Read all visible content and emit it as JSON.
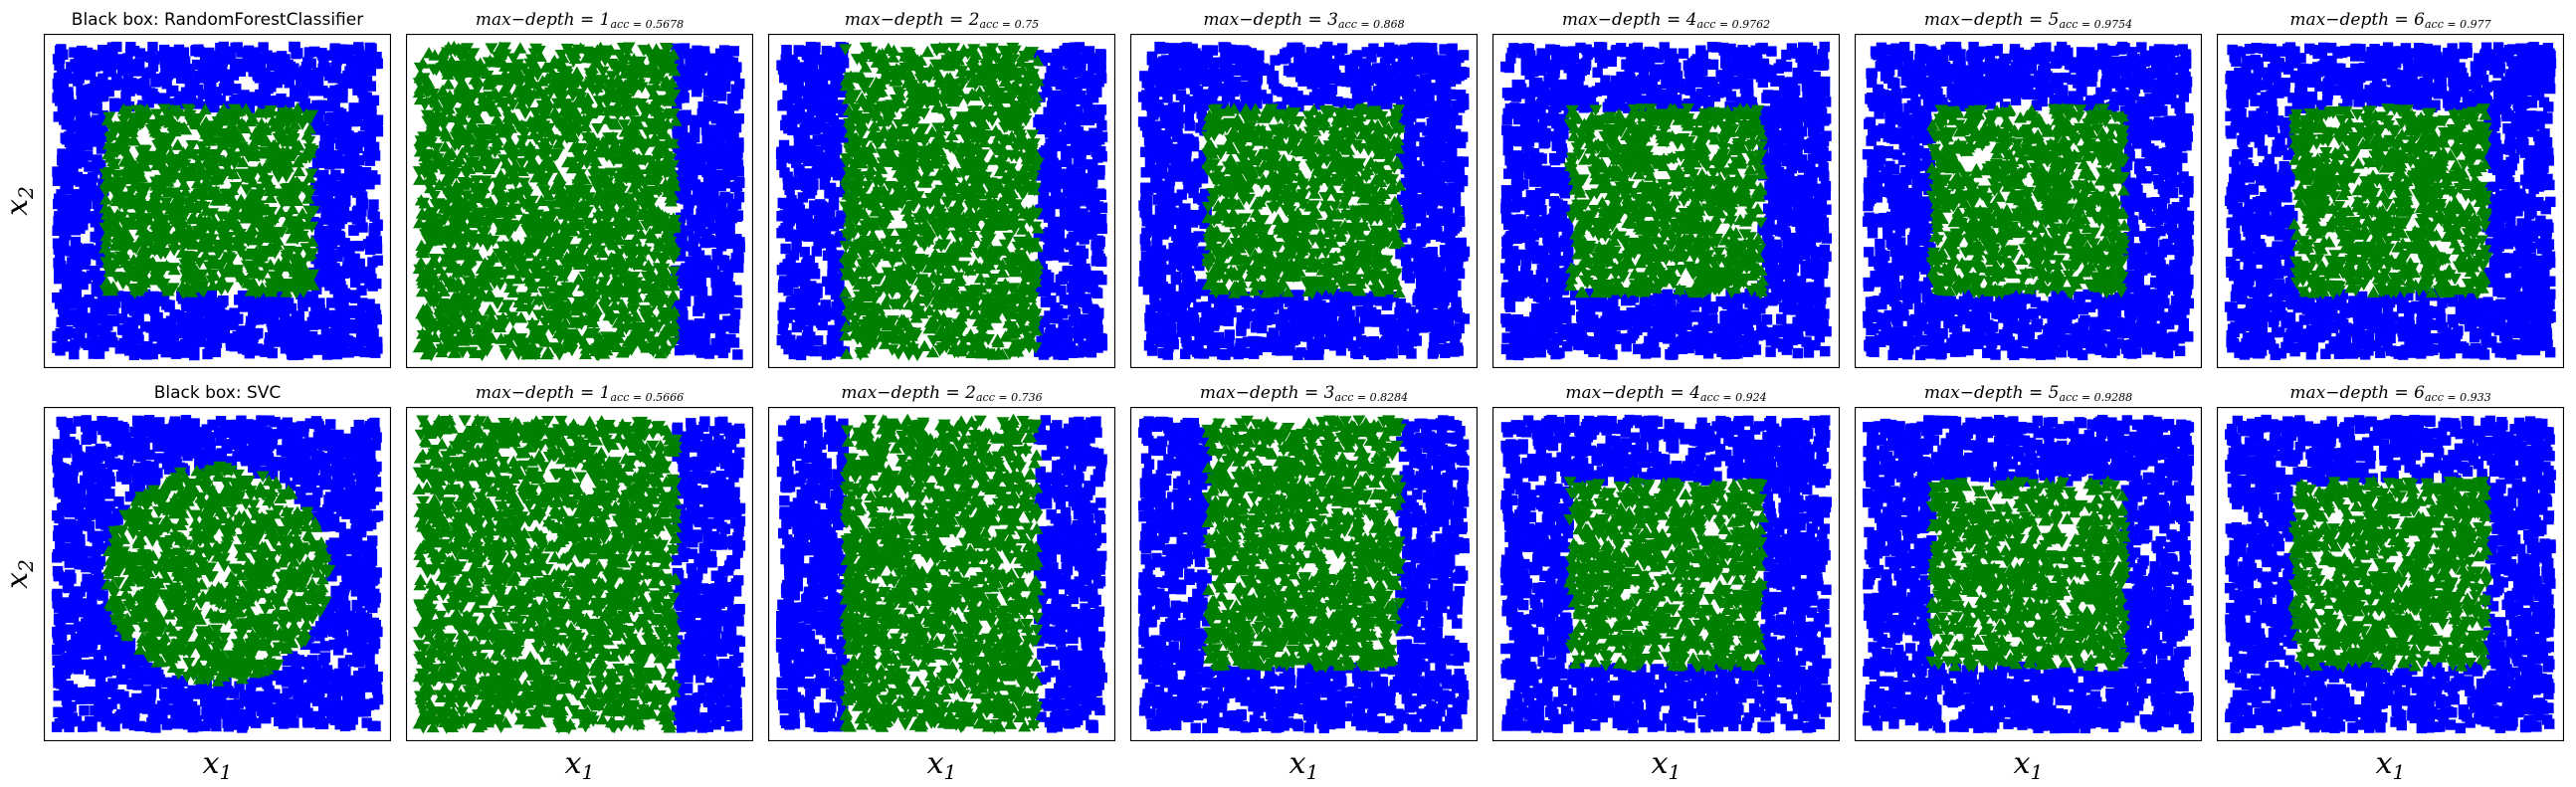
{
  "figure": {
    "x_axis_label": "x1",
    "y_axis_label": "x2"
  },
  "colors": {
    "class_outside": "#0000ff",
    "class_inside": "#008000",
    "frame": "#000000",
    "background": "#ffffff"
  },
  "chart_data": [
    {
      "type": "scatter",
      "row": 0,
      "col": 0,
      "title": "Black box: RandomForestClassifier",
      "model": "RandomForestClassifier",
      "region_shape": "square",
      "region": {
        "x": [
          0.15,
          0.8
        ],
        "y": [
          0.2,
          0.8
        ]
      },
      "xlabel": "",
      "ylabel": "x2",
      "xticks": "none",
      "yticks": "none"
    },
    {
      "type": "scatter",
      "row": 0,
      "col": 1,
      "title_lhs": "max−depth = 1",
      "acc": "acc = 0.5678",
      "max_depth": 1,
      "region_shape": "vertical-band",
      "region": {
        "x": [
          0.0,
          0.8
        ],
        "y": [
          0.0,
          1.0
        ]
      },
      "xlabel": "",
      "ylabel": "",
      "xticks": "none",
      "yticks": "none"
    },
    {
      "type": "scatter",
      "row": 0,
      "col": 2,
      "title_lhs": "max−depth = 2",
      "acc": "acc = 0.75",
      "max_depth": 2,
      "region_shape": "vertical-band",
      "region": {
        "x": [
          0.2,
          0.8
        ],
        "y": [
          0.0,
          1.0
        ]
      },
      "xlabel": "",
      "ylabel": "",
      "xticks": "none",
      "yticks": "none"
    },
    {
      "type": "scatter",
      "row": 0,
      "col": 3,
      "title_lhs": "max−depth = 3",
      "acc": "acc = 0.868",
      "max_depth": 3,
      "region_shape": "rectangle",
      "region": {
        "x": [
          0.2,
          0.8
        ],
        "y": [
          0.2,
          0.8
        ]
      },
      "xlabel": "",
      "ylabel": "",
      "xticks": "none",
      "yticks": "none"
    },
    {
      "type": "scatter",
      "row": 0,
      "col": 4,
      "title_lhs": "max−depth = 4",
      "acc": "acc = 0.9762",
      "max_depth": 4,
      "region_shape": "square",
      "region": {
        "x": [
          0.2,
          0.8
        ],
        "y": [
          0.2,
          0.8
        ]
      },
      "xlabel": "",
      "ylabel": "",
      "xticks": "none",
      "yticks": "none"
    },
    {
      "type": "scatter",
      "row": 0,
      "col": 5,
      "title_lhs": "max−depth = 5",
      "acc": "acc = 0.9754",
      "max_depth": 5,
      "region_shape": "square",
      "region": {
        "x": [
          0.2,
          0.8
        ],
        "y": [
          0.2,
          0.8
        ]
      },
      "xlabel": "",
      "ylabel": "",
      "xticks": "none",
      "yticks": "none"
    },
    {
      "type": "scatter",
      "row": 0,
      "col": 6,
      "title_lhs": "max−depth = 6",
      "acc": "acc = 0.977",
      "max_depth": 6,
      "region_shape": "square",
      "region": {
        "x": [
          0.2,
          0.8
        ],
        "y": [
          0.2,
          0.8
        ]
      },
      "xlabel": "",
      "ylabel": "",
      "xticks": "none",
      "yticks": "none"
    },
    {
      "type": "scatter",
      "row": 1,
      "col": 0,
      "title": "Black box: SVC",
      "model": "SVC",
      "region_shape": "circle",
      "region": {
        "cx": 0.5,
        "cy": 0.5,
        "r": 0.35
      },
      "xlabel": "x1",
      "ylabel": "x2",
      "xticks": "none",
      "yticks": "none"
    },
    {
      "type": "scatter",
      "row": 1,
      "col": 1,
      "title_lhs": "max−depth = 1",
      "acc": "acc = 0.5666",
      "max_depth": 1,
      "region_shape": "vertical-band",
      "region": {
        "x": [
          0.0,
          0.8
        ],
        "y": [
          0.0,
          1.0
        ]
      },
      "xlabel": "x1",
      "ylabel": "",
      "xticks": "none",
      "yticks": "none"
    },
    {
      "type": "scatter",
      "row": 1,
      "col": 2,
      "title_lhs": "max−depth = 2",
      "acc": "acc = 0.736",
      "max_depth": 2,
      "region_shape": "vertical-band",
      "region": {
        "x": [
          0.2,
          0.8
        ],
        "y": [
          0.0,
          1.0
        ]
      },
      "xlabel": "x1",
      "ylabel": "",
      "xticks": "none",
      "yticks": "none"
    },
    {
      "type": "scatter",
      "row": 1,
      "col": 3,
      "title_lhs": "max−depth = 3",
      "acc": "acc = 0.8284",
      "max_depth": 3,
      "region_shape": "rectangle",
      "region": {
        "x": [
          0.2,
          0.8
        ],
        "y": [
          0.2,
          1.0
        ]
      },
      "xlabel": "x1",
      "ylabel": "",
      "xticks": "none",
      "yticks": "none"
    },
    {
      "type": "scatter",
      "row": 1,
      "col": 4,
      "title_lhs": "max−depth = 4",
      "acc": "acc = 0.924",
      "max_depth": 4,
      "region_shape": "square",
      "region": {
        "x": [
          0.2,
          0.8
        ],
        "y": [
          0.2,
          0.8
        ]
      },
      "xlabel": "x1",
      "ylabel": "",
      "xticks": "none",
      "yticks": "none"
    },
    {
      "type": "scatter",
      "row": 1,
      "col": 5,
      "title_lhs": "max−depth = 5",
      "acc": "acc = 0.9288",
      "max_depth": 5,
      "region_shape": "square",
      "region": {
        "x": [
          0.2,
          0.8
        ],
        "y": [
          0.2,
          0.8
        ]
      },
      "xlabel": "x1",
      "ylabel": "",
      "xticks": "none",
      "yticks": "none"
    },
    {
      "type": "scatter",
      "row": 1,
      "col": 6,
      "title_lhs": "max−depth = 6",
      "acc": "acc = 0.933",
      "max_depth": 6,
      "region_shape": "square",
      "region": {
        "x": [
          0.2,
          0.8
        ],
        "y": [
          0.2,
          0.8
        ]
      },
      "xlabel": "x1",
      "ylabel": "",
      "xticks": "none",
      "yticks": "none"
    }
  ]
}
